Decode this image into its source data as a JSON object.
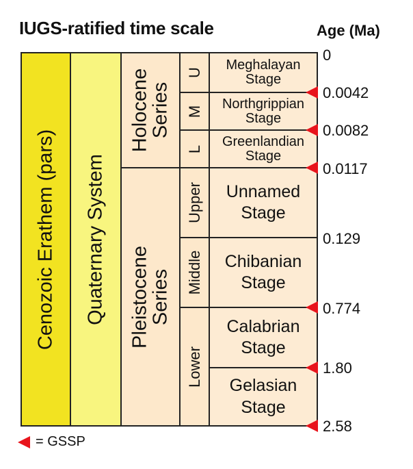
{
  "header": {
    "title": "IUGS-ratified time scale",
    "age_label": "Age (Ma)"
  },
  "units": {
    "erathem": "Cenozoic Erathem (pars)",
    "system": "Quaternary System",
    "holocene": {
      "line1": "Holocene",
      "line2": "Series"
    },
    "pleistocene": {
      "line1": "Pleistocene",
      "line2": "Series"
    }
  },
  "subseries": {
    "u": "U",
    "m": "M",
    "l": "L",
    "upper": "Upper",
    "middle": "Middle",
    "lower": "Lower"
  },
  "stages": {
    "meghalayan": {
      "line1": "Meghalayan",
      "line2": "Stage"
    },
    "northgrippian": {
      "line1": "Northgrippian",
      "line2": "Stage"
    },
    "greenlandian": {
      "line1": "Greenlandian",
      "line2": "Stage"
    },
    "unnamed": {
      "line1": "Unnamed",
      "line2": "Stage"
    },
    "chibanian": {
      "line1": "Chibanian",
      "line2": "Stage"
    },
    "calabrian": {
      "line1": "Calabrian",
      "line2": "Stage"
    },
    "gelasian": {
      "line1": "Gelasian",
      "line2": "Stage"
    }
  },
  "ages": [
    "0",
    "0.0042",
    "0.0082",
    "0.0117",
    "0.129",
    "0.774",
    "1.80",
    "2.58"
  ],
  "legend": {
    "text": "= GSSP"
  },
  "colors": {
    "erathem": "#f2e321",
    "system": "#f8f57f",
    "series": "#fde8cb",
    "stage": "#fdebd3",
    "gssp": "#e8141c"
  }
}
